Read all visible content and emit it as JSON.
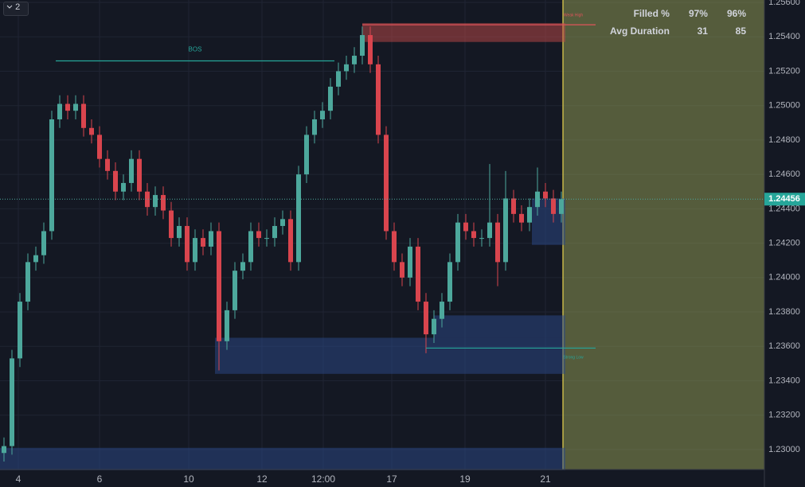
{
  "toolbar": {
    "label": "2"
  },
  "table": {
    "rows": [
      [
        "Filled %",
        "97%",
        "96%"
      ],
      [
        "Avg Duration",
        "31",
        "85"
      ]
    ]
  },
  "chart_data": {
    "type": "candlestick",
    "up_color": "#4da89c",
    "down_color": "#d9454e",
    "open": [
      1.2298,
      1.2302,
      1.2353,
      1.2386,
      1.2409,
      1.2413,
      1.2427,
      1.2492,
      1.2501,
      1.2497,
      1.2501,
      1.2487,
      1.2483,
      1.2469,
      1.2462,
      1.245,
      1.2455,
      1.2469,
      1.245,
      1.2441,
      1.2448,
      1.2439,
      1.2423,
      1.243,
      1.2409,
      1.2423,
      1.2418,
      1.2427,
      1.2363,
      1.2381,
      1.2404,
      1.2409,
      1.2427,
      1.2423,
      1.2423,
      1.243,
      1.2434,
      1.2409,
      1.246,
      1.2483,
      1.2492,
      1.2497,
      1.2511,
      1.252,
      1.2524,
      1.2529,
      1.2541,
      1.2524,
      1.2483,
      1.2427,
      1.2409,
      1.24,
      1.2418,
      1.2386,
      1.2367,
      1.2376,
      1.2386,
      1.2409,
      1.2432,
      1.2427,
      1.2423,
      1.2423,
      1.2432,
      1.2409,
      1.2446,
      1.2437,
      1.2432,
      1.2441,
      1.245,
      1.2446,
      1.2437
    ],
    "high": [
      1.2307,
      1.2358,
      1.2391,
      1.2414,
      1.2418,
      1.2432,
      1.2497,
      1.2506,
      1.2506,
      1.2506,
      1.2506,
      1.2492,
      1.2488,
      1.2474,
      1.2467,
      1.246,
      1.2474,
      1.2474,
      1.2455,
      1.2453,
      1.2453,
      1.2444,
      1.2435,
      1.2435,
      1.2428,
      1.2428,
      1.2432,
      1.2432,
      1.2386,
      1.2409,
      1.2414,
      1.2432,
      1.2432,
      1.2428,
      1.2435,
      1.2439,
      1.2439,
      1.2465,
      1.2488,
      1.2497,
      1.2502,
      1.2516,
      1.2525,
      1.2529,
      1.2534,
      1.2546,
      1.2546,
      1.2529,
      1.2488,
      1.2432,
      1.2414,
      1.2423,
      1.2423,
      1.2391,
      1.2381,
      1.2391,
      1.2414,
      1.2437,
      1.2437,
      1.2432,
      1.2428,
      1.2466,
      1.2437,
      1.2462,
      1.2451,
      1.2442,
      1.2446,
      1.2464,
      1.2455,
      1.2451,
      1.245
    ],
    "low": [
      1.2293,
      1.2297,
      1.2348,
      1.2381,
      1.2404,
      1.2408,
      1.2422,
      1.2487,
      1.2492,
      1.2492,
      1.2482,
      1.2478,
      1.2464,
      1.2457,
      1.2445,
      1.2445,
      1.245,
      1.2445,
      1.2436,
      1.2436,
      1.2434,
      1.2418,
      1.2418,
      1.2404,
      1.2404,
      1.2413,
      1.2413,
      1.2346,
      1.2358,
      1.2376,
      1.2399,
      1.2404,
      1.2418,
      1.2418,
      1.2418,
      1.2425,
      1.2404,
      1.2404,
      1.2455,
      1.2478,
      1.2487,
      1.2492,
      1.2506,
      1.2515,
      1.2519,
      1.2524,
      1.2519,
      1.2478,
      1.2422,
      1.2404,
      1.2395,
      1.2395,
      1.2381,
      1.2356,
      1.2362,
      1.2371,
      1.2381,
      1.2404,
      1.2422,
      1.2418,
      1.2418,
      1.2418,
      1.2395,
      1.2404,
      1.2432,
      1.2427,
      1.2427,
      1.2436,
      1.2441,
      1.2432,
      1.2432
    ],
    "close": [
      1.2302,
      1.2353,
      1.2386,
      1.2409,
      1.2413,
      1.2427,
      1.2492,
      1.2501,
      1.2497,
      1.2501,
      1.2487,
      1.2483,
      1.2469,
      1.2462,
      1.245,
      1.2455,
      1.2469,
      1.245,
      1.2441,
      1.2448,
      1.2439,
      1.2423,
      1.243,
      1.2409,
      1.2423,
      1.2418,
      1.2427,
      1.2363,
      1.2381,
      1.2404,
      1.2409,
      1.2427,
      1.2423,
      1.2423,
      1.243,
      1.2434,
      1.2409,
      1.246,
      1.2483,
      1.2492,
      1.2497,
      1.2511,
      1.252,
      1.2524,
      1.2529,
      1.2541,
      1.2524,
      1.2483,
      1.2427,
      1.2409,
      1.24,
      1.2418,
      1.2386,
      1.2367,
      1.2376,
      1.2386,
      1.2409,
      1.2432,
      1.2427,
      1.2423,
      1.2423,
      1.2432,
      1.2409,
      1.2446,
      1.2437,
      1.2432,
      1.2441,
      1.245,
      1.2446,
      1.2437,
      1.24456
    ],
    "zones": [
      {
        "color": "#c24a4a",
        "x0": 45,
        "x1": 70.5,
        "y0": 1.2537,
        "y1": 1.2548
      },
      {
        "color": "#2b4a8c",
        "x0": 26.5,
        "x1": 70.5,
        "y0": 1.2344,
        "y1": 1.2365
      },
      {
        "color": "#2b4a8c",
        "x0": 54,
        "x1": 70.5,
        "y0": 1.2365,
        "y1": 1.2378
      },
      {
        "color": "#2b4a8c",
        "x0": -0.5,
        "x1": 70.5,
        "y0": 1.2288,
        "y1": 1.2301
      },
      {
        "color": "#2b4a8c",
        "x0": 66.3,
        "x1": 70.5,
        "y0": 1.2419,
        "y1": 1.2446
      }
    ],
    "levels": [
      {
        "label": "BOS",
        "color": "#26a69a",
        "value": 1.2526,
        "x0": 6.5,
        "x1": 41.5
      },
      {
        "label": "Weak High",
        "color": "#e0535a",
        "value": 1.2547,
        "x0": 45,
        "x1": 74.3
      },
      {
        "label": "Strong Low",
        "color": "#26a69a",
        "value": 1.2359,
        "x0": 53,
        "x1": 74.3
      }
    ],
    "xlim": [
      -0.5,
      95.5
    ],
    "xticks": [
      {
        "value": 1.8,
        "label": "4"
      },
      {
        "value": 12,
        "label": "6"
      },
      {
        "value": 23.2,
        "label": "10"
      },
      {
        "value": 32.4,
        "label": "12"
      },
      {
        "value": 40.1,
        "label": "12:00"
      },
      {
        "value": 48.7,
        "label": "17"
      },
      {
        "value": 57.9,
        "label": "19"
      },
      {
        "value": 68,
        "label": "21"
      }
    ],
    "ylim": [
      1.22884,
      1.25614
    ],
    "yticks": [
      {
        "value": 1.256,
        "label": "1.25600"
      },
      {
        "value": 1.254,
        "label": "1.25400"
      },
      {
        "value": 1.252,
        "label": "1.25200"
      },
      {
        "value": 1.25,
        "label": "1.25000"
      },
      {
        "value": 1.248,
        "label": "1.24800"
      },
      {
        "value": 1.246,
        "label": "1.24600"
      },
      {
        "value": 1.244,
        "label": "1.24400"
      },
      {
        "value": 1.242,
        "label": "1.24200"
      },
      {
        "value": 1.24,
        "label": "1.24000"
      },
      {
        "value": 1.238,
        "label": "1.23800"
      },
      {
        "value": 1.236,
        "label": "1.23600"
      },
      {
        "value": 1.234,
        "label": "1.23400"
      },
      {
        "value": 1.232,
        "label": "1.23200"
      },
      {
        "value": 1.23,
        "label": "1.23000"
      }
    ],
    "grid": true
  }
}
